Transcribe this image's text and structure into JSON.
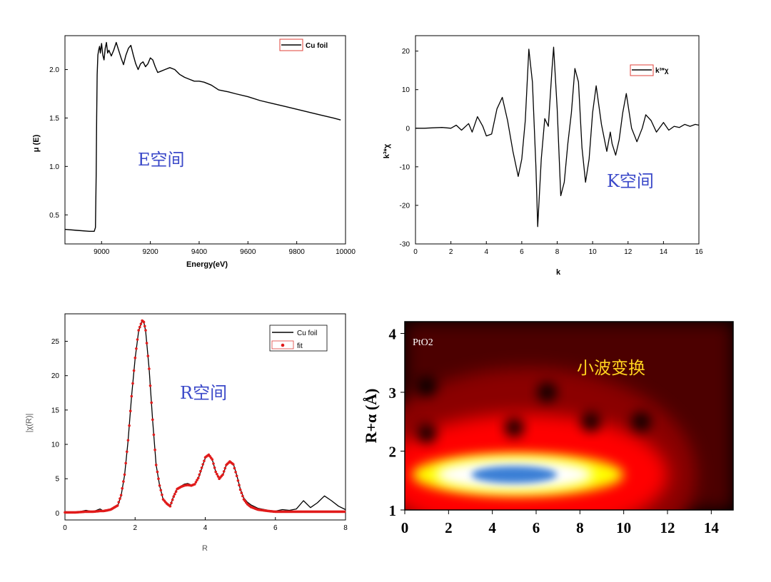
{
  "chart_data": [
    {
      "id": "e-space",
      "type": "line",
      "title": "",
      "annotation": "E空间",
      "xlabel": "Energy(eV)",
      "ylabel": "μ (E)",
      "xlim": [
        8850,
        10000
      ],
      "ylim": [
        0.2,
        2.35
      ],
      "xticks": [
        9000,
        9200,
        9400,
        9600,
        9800,
        10000
      ],
      "yticks": [
        0.5,
        1.0,
        1.5,
        2.0
      ],
      "legend": [
        "Cu foil"
      ],
      "legend_position": "top-right",
      "series": [
        {
          "name": "Cu foil",
          "x": [
            8850,
            8900,
            8950,
            8970,
            8975,
            8978,
            8980,
            8982,
            8985,
            8988,
            8992,
            8995,
            9000,
            9005,
            9010,
            9015,
            9020,
            9025,
            9030,
            9040,
            9050,
            9060,
            9070,
            9080,
            9090,
            9100,
            9110,
            9120,
            9130,
            9140,
            9150,
            9160,
            9170,
            9180,
            9190,
            9200,
            9210,
            9220,
            9230,
            9240,
            9260,
            9280,
            9300,
            9320,
            9340,
            9360,
            9380,
            9400,
            9420,
            9450,
            9480,
            9500,
            9520,
            9550,
            9600,
            9650,
            9700,
            9750,
            9800,
            9850,
            9900,
            9950,
            9980
          ],
          "values": [
            0.35,
            0.34,
            0.33,
            0.33,
            0.37,
            0.9,
            1.5,
            1.95,
            2.15,
            2.2,
            2.24,
            2.17,
            2.27,
            2.15,
            2.1,
            2.22,
            2.28,
            2.17,
            2.2,
            2.14,
            2.2,
            2.28,
            2.2,
            2.12,
            2.05,
            2.15,
            2.22,
            2.25,
            2.15,
            2.06,
            2.0,
            2.06,
            2.08,
            2.03,
            2.06,
            2.12,
            2.1,
            2.03,
            1.97,
            1.98,
            2.0,
            2.02,
            2.0,
            1.95,
            1.92,
            1.9,
            1.88,
            1.88,
            1.87,
            1.84,
            1.79,
            1.78,
            1.77,
            1.75,
            1.72,
            1.68,
            1.65,
            1.62,
            1.59,
            1.56,
            1.53,
            1.5,
            1.48
          ]
        }
      ]
    },
    {
      "id": "k-space",
      "type": "line",
      "title": "",
      "annotation": "K空间",
      "xlabel": "k",
      "ylabel": "k³*χ",
      "xlim": [
        0,
        16
      ],
      "ylim": [
        -30,
        24
      ],
      "xticks": [
        0,
        2,
        4,
        6,
        8,
        10,
        12,
        14,
        16
      ],
      "yticks": [
        -30,
        -20,
        -10,
        0,
        10,
        20
      ],
      "legend": [
        "k³*χ"
      ],
      "legend_position": "top-right",
      "series": [
        {
          "name": "k³*χ",
          "x": [
            0,
            0.5,
            1.0,
            1.5,
            2.0,
            2.3,
            2.6,
            3.0,
            3.2,
            3.5,
            3.8,
            4.0,
            4.3,
            4.6,
            4.9,
            5.2,
            5.5,
            5.8,
            6.0,
            6.2,
            6.4,
            6.6,
            6.8,
            6.9,
            7.1,
            7.3,
            7.5,
            7.7,
            7.8,
            8.0,
            8.2,
            8.4,
            8.6,
            8.8,
            9.0,
            9.2,
            9.4,
            9.6,
            9.8,
            10.0,
            10.2,
            10.5,
            10.8,
            11.0,
            11.1,
            11.3,
            11.5,
            11.7,
            11.9,
            12.2,
            12.5,
            12.8,
            13.0,
            13.3,
            13.6,
            14.0,
            14.3,
            14.6,
            14.9,
            15.2,
            15.5,
            15.8,
            16.0
          ],
          "values": [
            0,
            0,
            0.1,
            0.2,
            0,
            0.8,
            -0.5,
            1.2,
            -1.0,
            3.0,
            0.5,
            -2.0,
            -1.5,
            5.0,
            8.0,
            2.0,
            -6.0,
            -12.5,
            -8.0,
            2.0,
            20.5,
            12.0,
            -10.0,
            -25.5,
            -8.0,
            2.5,
            0.5,
            15.0,
            21.0,
            5.0,
            -17.5,
            -14.0,
            -4.0,
            4.0,
            15.5,
            12.0,
            -5.0,
            -14.0,
            -8.0,
            4.0,
            11.0,
            1.0,
            -6.0,
            -1.0,
            -4.0,
            -7.0,
            -3.0,
            4.0,
            9.0,
            0,
            -3.5,
            0,
            3.5,
            2.0,
            -1.0,
            1.5,
            -0.5,
            0.5,
            0.2,
            1.0,
            0.5,
            1.0,
            0.8
          ]
        }
      ]
    },
    {
      "id": "r-space",
      "type": "line",
      "title": "",
      "annotation": "R空间",
      "xlabel": "R",
      "ylabel": "|χ(R)|",
      "xlim": [
        0,
        8
      ],
      "ylim": [
        -1,
        29
      ],
      "xticks": [
        0,
        2,
        4,
        6,
        8
      ],
      "yticks": [
        0,
        5,
        10,
        15,
        20,
        25
      ],
      "legend": [
        "Cu foil",
        "fit"
      ],
      "legend_position": "top-right",
      "series": [
        {
          "name": "Cu foil",
          "x": [
            0,
            0.3,
            0.6,
            0.8,
            1.0,
            1.1,
            1.3,
            1.5,
            1.6,
            1.7,
            1.8,
            1.9,
            2.0,
            2.1,
            2.2,
            2.25,
            2.3,
            2.4,
            2.5,
            2.6,
            2.7,
            2.8,
            2.9,
            3.0,
            3.1,
            3.2,
            3.3,
            3.4,
            3.5,
            3.6,
            3.7,
            3.8,
            3.9,
            4.0,
            4.1,
            4.2,
            4.3,
            4.4,
            4.5,
            4.6,
            4.7,
            4.8,
            4.9,
            5.0,
            5.1,
            5.2,
            5.3,
            5.5,
            5.8,
            6.0,
            6.2,
            6.4,
            6.6,
            6.8,
            7.0,
            7.2,
            7.4,
            7.6,
            7.8,
            8.0
          ],
          "values": [
            0.2,
            0.1,
            0.4,
            0.2,
            0.6,
            0.3,
            0.5,
            1.0,
            2.5,
            5.5,
            10.5,
            17.0,
            22.5,
            26.5,
            28.0,
            27.8,
            26.5,
            21.0,
            13.5,
            7.0,
            4.0,
            2.0,
            1.5,
            1.0,
            2.5,
            3.6,
            3.9,
            4.2,
            4.3,
            4.1,
            4.2,
            5.0,
            6.5,
            8.0,
            8.5,
            7.8,
            6.0,
            5.0,
            5.5,
            7.0,
            7.5,
            7.2,
            5.5,
            3.5,
            2.2,
            1.6,
            1.2,
            0.7,
            0.4,
            0.3,
            0.5,
            0.4,
            0.6,
            1.8,
            0.8,
            1.5,
            2.5,
            1.8,
            1.0,
            0.5
          ]
        },
        {
          "name": "fit",
          "x": [
            0,
            0.3,
            0.6,
            0.8,
            1.0,
            1.1,
            1.3,
            1.5,
            1.6,
            1.7,
            1.8,
            1.9,
            2.0,
            2.1,
            2.2,
            2.25,
            2.3,
            2.4,
            2.5,
            2.6,
            2.7,
            2.8,
            2.9,
            3.0,
            3.1,
            3.2,
            3.3,
            3.4,
            3.5,
            3.6,
            3.7,
            3.8,
            3.9,
            4.0,
            4.1,
            4.2,
            4.3,
            4.4,
            4.5,
            4.6,
            4.7,
            4.8,
            4.9,
            5.0,
            5.1,
            5.2,
            5.3,
            5.5,
            5.8,
            6.0,
            6.2,
            6.4,
            6.6,
            6.8,
            7.0,
            7.2,
            7.4,
            7.6,
            7.8,
            8.0
          ],
          "values": [
            0.1,
            0.1,
            0.2,
            0.2,
            0.3,
            0.3,
            0.5,
            1.1,
            2.6,
            5.6,
            10.6,
            17.0,
            22.6,
            26.6,
            28.0,
            27.8,
            26.6,
            21.0,
            13.6,
            7.0,
            4.0,
            2.0,
            1.4,
            1.0,
            2.4,
            3.5,
            3.8,
            4.0,
            4.1,
            4.0,
            4.2,
            5.1,
            6.6,
            8.1,
            8.5,
            7.8,
            6.0,
            5.0,
            5.6,
            7.0,
            7.5,
            7.1,
            5.4,
            3.4,
            2.0,
            1.3,
            0.9,
            0.5,
            0.3,
            0.2,
            0.2,
            0.2,
            0.2,
            0.2,
            0.2,
            0.2,
            0.2,
            0.2,
            0.2,
            0.2
          ]
        }
      ]
    },
    {
      "id": "wavelet",
      "type": "heatmap",
      "title": "小波变换",
      "sample_label": "PtO2",
      "xlabel": "",
      "ylabel": "R+α (Å)",
      "xlim": [
        0,
        15
      ],
      "ylim": [
        1,
        4.2
      ],
      "xticks": [
        0,
        2,
        4,
        6,
        8,
        10,
        12,
        14
      ],
      "yticks": [
        1,
        2,
        3,
        4
      ],
      "colormap": [
        "#000000",
        "#8b0000",
        "#ff0000",
        "#ffff00",
        "#ffffff",
        "#3a7fd5"
      ],
      "main_peak": {
        "k": 5.0,
        "r": 1.6
      },
      "dark_spots": [
        {
          "k": 1.0,
          "r": 2.3
        },
        {
          "k": 5.0,
          "r": 2.4
        },
        {
          "k": 6.5,
          "r": 3.0
        },
        {
          "k": 8.5,
          "r": 2.5
        },
        {
          "k": 10.8,
          "r": 2.5
        },
        {
          "k": 1.0,
          "r": 3.1
        }
      ]
    }
  ]
}
